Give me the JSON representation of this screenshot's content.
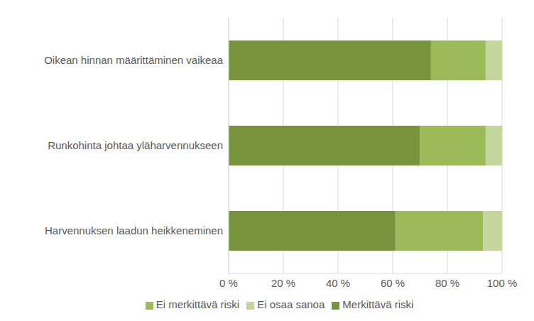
{
  "chart_data": {
    "type": "bar",
    "orientation": "horizontal",
    "stacked": true,
    "grid": true,
    "legend": "bottom",
    "categories": [
      "Oikean hinnan määrittäminen vaikeaa",
      "Runkohinta johtaa yläharvennukseen",
      "Harvennuksen laadun heikkeneminen"
    ],
    "series": [
      {
        "name": "Merkittävä riski",
        "color": "#77933c",
        "values": [
          74,
          70,
          61
        ]
      },
      {
        "name": "Ei merkittävä riski",
        "color": "#9bbb59",
        "values": [
          20,
          24,
          32
        ]
      },
      {
        "name": "Ei osaa sanoa",
        "color": "#c3d69b",
        "values": [
          6,
          6,
          7
        ]
      }
    ],
    "xlim": [
      0,
      100
    ],
    "xticks": [
      {
        "value": 0,
        "label": "0 %"
      },
      {
        "value": 20,
        "label": "20 %"
      },
      {
        "value": 40,
        "label": "40 %"
      },
      {
        "value": 60,
        "label": "60 %"
      },
      {
        "value": 80,
        "label": "80 %"
      },
      {
        "value": 100,
        "label": "100 %"
      }
    ]
  }
}
